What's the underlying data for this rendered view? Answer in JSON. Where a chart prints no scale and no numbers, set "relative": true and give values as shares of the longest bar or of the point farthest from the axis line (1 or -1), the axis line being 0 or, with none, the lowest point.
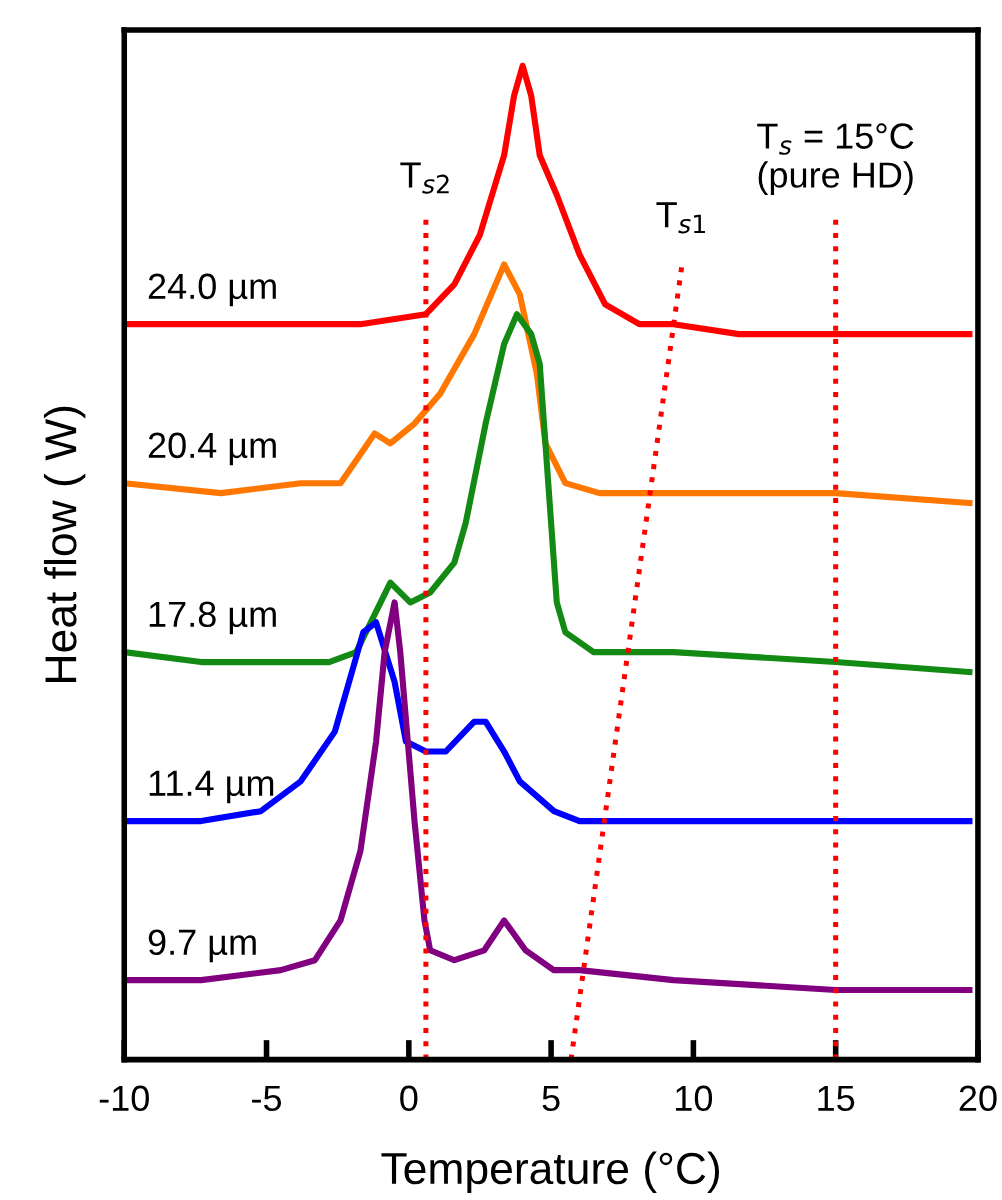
{
  "chart_data": {
    "type": "line",
    "relative": true,
    "xlabel": "Temperature (°C)",
    "ylabel": "Heat flow ( W)",
    "xlim": [
      -10,
      20
    ],
    "xticks": [
      -10,
      -5,
      0,
      5,
      10,
      15,
      20
    ],
    "grid": false,
    "legend": false,
    "marker": "none",
    "line_style": "solid",
    "tick_labels": "x",
    "series": [
      {
        "name": "24.0 µm",
        "color": "#ff0000",
        "x": [
          -10,
          -5.9,
          -1.7,
          0.6,
          1.6,
          2.5,
          3.35,
          3.7,
          4.0,
          4.3,
          4.6,
          5.2,
          6.0,
          6.9,
          8.1,
          9.3,
          11.6,
          15.0,
          18.0,
          19.7
        ],
        "values": [
          0.74,
          0.74,
          0.74,
          0.75,
          0.78,
          0.83,
          0.91,
          0.97,
          1.0,
          0.97,
          0.91,
          0.87,
          0.81,
          0.76,
          0.74,
          0.74,
          0.73,
          0.73,
          0.73,
          0.73
        ]
      },
      {
        "name": "20.4 µm",
        "color": "#ff7700",
        "x": [
          -10,
          -6.6,
          -3.8,
          -2.4,
          -1.2,
          -0.65,
          0.2,
          1.1,
          2.3,
          3.35,
          3.9,
          4.5,
          4.8,
          5.5,
          6.7,
          9.3,
          15.0,
          19.7
        ],
        "values": [
          0.58,
          0.57,
          0.58,
          0.58,
          0.63,
          0.62,
          0.64,
          0.67,
          0.73,
          0.8,
          0.77,
          0.69,
          0.62,
          0.58,
          0.57,
          0.57,
          0.57,
          0.56
        ]
      },
      {
        "name": "17.8 µm",
        "color": "#138a13",
        "x": [
          -10,
          -7.3,
          -2.8,
          -1.85,
          -0.65,
          0.05,
          0.75,
          1.6,
          2.0,
          2.7,
          3.35,
          3.8,
          4.3,
          4.6,
          4.9,
          5.2,
          5.5,
          6.5,
          9.3,
          15.0,
          19.7
        ],
        "values": [
          0.41,
          0.4,
          0.4,
          0.41,
          0.48,
          0.46,
          0.47,
          0.5,
          0.54,
          0.64,
          0.72,
          0.75,
          0.73,
          0.7,
          0.58,
          0.46,
          0.43,
          0.41,
          0.41,
          0.4,
          0.39
        ]
      },
      {
        "name": "11.4 µm",
        "color": "#0000ff",
        "x": [
          -10,
          -7.3,
          -5.2,
          -3.8,
          -2.6,
          -1.6,
          -1.15,
          -0.5,
          -0.1,
          0.6,
          1.3,
          2.3,
          2.7,
          3.35,
          3.9,
          5.1,
          6.0,
          9.3,
          15.0,
          19.7
        ],
        "values": [
          0.24,
          0.24,
          0.25,
          0.28,
          0.33,
          0.43,
          0.44,
          0.38,
          0.32,
          0.31,
          0.31,
          0.34,
          0.34,
          0.31,
          0.28,
          0.25,
          0.24,
          0.24,
          0.24,
          0.24
        ]
      },
      {
        "name": "9.7 µm",
        "color": "#800080",
        "x": [
          -10,
          -7.3,
          -4.5,
          -3.3,
          -2.4,
          -1.7,
          -1.15,
          -0.85,
          -0.5,
          -0.3,
          0.2,
          0.55,
          0.75,
          1.6,
          2.65,
          3.35,
          4.1,
          5.1,
          6.0,
          9.3,
          15.0,
          19.7
        ],
        "values": [
          0.08,
          0.08,
          0.09,
          0.1,
          0.14,
          0.21,
          0.32,
          0.41,
          0.46,
          0.41,
          0.24,
          0.14,
          0.11,
          0.1,
          0.11,
          0.14,
          0.11,
          0.09,
          0.09,
          0.08,
          0.07,
          0.07
        ]
      },
      {
        "name": "T$_{s1}$",
        "color": "#ff0000",
        "line_style": "dotted",
        "x": [
          5.7,
          9.6
        ],
        "values": [
          0.0,
          0.8
        ]
      }
    ],
    "ref_lines": [
      {
        "axis": "x",
        "value": 0.6,
        "color": "#ff0000",
        "line_style": "dotted",
        "label": "T$_{s2}$"
      },
      {
        "axis": "x",
        "value": 15,
        "color": "#ff0000",
        "line_style": "dotted",
        "label": "T$_{s}$ = 15°C\n(pure HD)"
      }
    ]
  }
}
